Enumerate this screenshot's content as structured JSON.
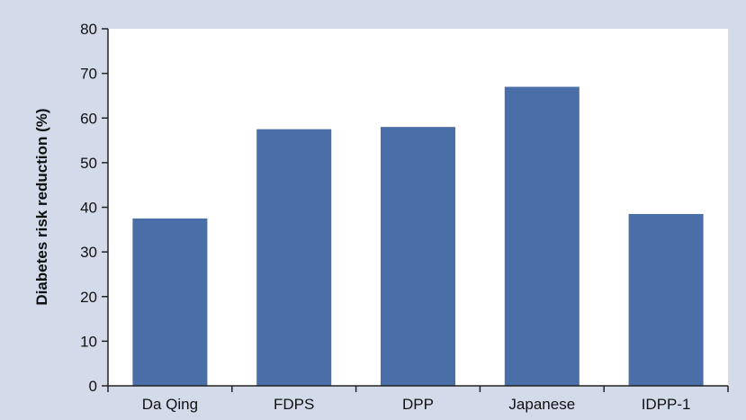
{
  "colors": {
    "panel_background": "#d3dbea",
    "plot_background": "#ffffff",
    "bar_fill": "#4a6ea8",
    "axis_line": "#222222",
    "text": "#111111"
  },
  "chart_data": {
    "type": "bar",
    "title": "",
    "xlabel": "",
    "ylabel": "Diabetes risk reduction (%)",
    "categories": [
      "Da Qing",
      "FDPS",
      "DPP",
      "Japanese",
      "IDPP-1"
    ],
    "values": [
      37.5,
      57.5,
      58,
      67,
      38.5
    ],
    "ylim": [
      0,
      80
    ],
    "yticks": [
      0,
      10,
      20,
      30,
      40,
      50,
      60,
      70,
      80
    ],
    "grid": false,
    "legend": "none"
  }
}
